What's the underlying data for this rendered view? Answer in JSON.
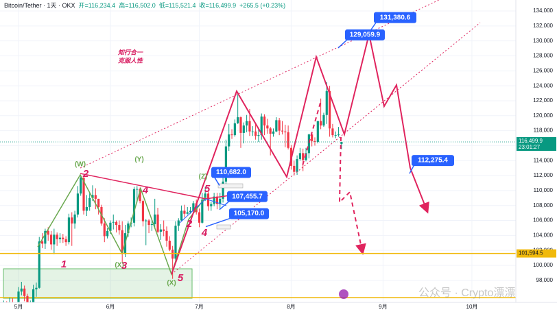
{
  "chart_data": {
    "type": "candlestick",
    "title": "Bitcoin/Tether · 1天 · OKX",
    "ohlc_header": [
      "开=116,234.4",
      "高=116,502.0",
      "低=115,521.4",
      "收=116,499.9",
      "+265.5 (+0.23%)"
    ],
    "up_color": "#089981",
    "down_color": "#f23645",
    "open": [
      94200,
      94600,
      93800,
      95000,
      94300,
      94200,
      96500,
      96900,
      95900,
      94300,
      94700,
      96800,
      97000,
      103200,
      102900,
      104600,
      104100,
      102800,
      104100,
      103500,
      103700,
      103500,
      103100,
      106400,
      105600,
      106800,
      109600,
      111700,
      107300,
      107800,
      109000,
      109400,
      108900,
      107800,
      105600,
      103900,
      104600,
      105700,
      105800,
      105400,
      104700,
      101500,
      104300,
      105600,
      105700,
      110200,
      110200,
      108600,
      105900,
      106000,
      105400,
      105500,
      106800,
      104500,
      104800,
      104600,
      103300,
      102100,
      100900,
      105300,
      106000,
      107300,
      106900,
      107100,
      107300,
      108300,
      107100,
      105700,
      108800,
      109600,
      107900,
      108200,
      109200,
      108200,
      108900,
      111200,
      115900,
      117500,
      117400,
      119000,
      119800,
      117700,
      118700,
      119300,
      117900,
      117900,
      117300,
      117400,
      119900,
      118700,
      118300,
      117600,
      117900,
      119400,
      118000,
      117900,
      117800,
      115700,
      113300,
      112500,
      114200,
      115000,
      114100,
      115000,
      117500,
      116600,
      116500,
      119300,
      118700,
      120100,
      123300,
      118300,
      117400,
      117400,
      116234.4
    ],
    "high": [
      95300,
      95200,
      95700,
      95600,
      95100,
      97100,
      97800,
      97300,
      96200,
      95300,
      97400,
      97700,
      103800,
      104300,
      104900,
      105100,
      104600,
      104900,
      104400,
      104300,
      104200,
      103900,
      106900,
      107100,
      107300,
      110600,
      112000,
      111900,
      109400,
      109700,
      110700,
      110300,
      108900,
      108100,
      106300,
      105000,
      106000,
      106800,
      106000,
      106000,
      105900,
      105400,
      105900,
      106400,
      110500,
      110600,
      110400,
      108800,
      106200,
      106200,
      106100,
      108900,
      107700,
      105500,
      106000,
      105200,
      103900,
      102600,
      105900,
      106300,
      108000,
      108100,
      107800,
      107800,
      108600,
      108800,
      107600,
      109700,
      110500,
      110000,
      108500,
      109700,
      109700,
      109700,
      112000,
      116800,
      118900,
      118200,
      119500,
      123200,
      119900,
      119100,
      120100,
      120900,
      118600,
      118900,
      118300,
      120300,
      120200,
      119600,
      118500,
      118300,
      119800,
      119700,
      119300,
      118800,
      118700,
      116100,
      114000,
      114700,
      115700,
      115600,
      115700,
      117600,
      117700,
      117100,
      119300,
      122300,
      120400,
      124500,
      124000,
      118900,
      117900,
      118500,
      116502.0
    ],
    "low": [
      93600,
      93200,
      93300,
      93700,
      93500,
      94000,
      96000,
      95200,
      93600,
      93800,
      94400,
      95800,
      96900,
      102300,
      102200,
      103300,
      102100,
      101500,
      102600,
      103000,
      103000,
      102600,
      102800,
      102600,
      104900,
      106400,
      109300,
      106800,
      106600,
      107300,
      108600,
      107500,
      106800,
      105300,
      103100,
      103600,
      104200,
      104800,
      104400,
      104100,
      100400,
      101100,
      103800,
      105100,
      105200,
      108400,
      108300,
      105200,
      102700,
      104300,
      104600,
      104900,
      104300,
      103400,
      103900,
      102500,
      101900,
      98200,
      100300,
      104600,
      105900,
      106400,
      106800,
      106900,
      107000,
      106800,
      105100,
      105600,
      108600,
      107300,
      107300,
      107900,
      107500,
      107500,
      108400,
      110800,
      115300,
      116900,
      117200,
      118900,
      115700,
      116300,
      117800,
      117300,
      117300,
      116800,
      116500,
      116800,
      117400,
      117600,
      114700,
      117200,
      117800,
      117400,
      117500,
      115800,
      115500,
      112800,
      112000,
      112100,
      114000,
      112600,
      113900,
      114300,
      115900,
      116000,
      116300,
      118200,
      118500,
      118900,
      117200,
      117100,
      117000,
      117200,
      115521.4
    ],
    "close": [
      94600,
      93800,
      95000,
      94300,
      94200,
      96500,
      96900,
      95900,
      94300,
      94700,
      96800,
      97000,
      103200,
      102900,
      104600,
      104100,
      102800,
      104100,
      103500,
      103700,
      103500,
      103100,
      106400,
      105600,
      106800,
      109600,
      111700,
      107300,
      107800,
      109000,
      109400,
      108900,
      107800,
      105600,
      103900,
      104600,
      105700,
      105800,
      105400,
      104700,
      101500,
      104300,
      105600,
      105700,
      110200,
      110200,
      108600,
      105900,
      106000,
      105400,
      105500,
      106800,
      104500,
      104800,
      104600,
      103300,
      102100,
      100900,
      105300,
      106000,
      107300,
      106900,
      107100,
      107300,
      108300,
      107100,
      105700,
      108800,
      109600,
      107900,
      108200,
      109200,
      108200,
      108900,
      111200,
      115900,
      117500,
      117400,
      119000,
      119800,
      117700,
      118700,
      119300,
      117900,
      117900,
      117300,
      117400,
      119900,
      118700,
      118300,
      117600,
      117900,
      119400,
      118000,
      117900,
      117800,
      115700,
      113300,
      112500,
      114200,
      115000,
      114100,
      115000,
      117500,
      116600,
      116500,
      119300,
      118700,
      120100,
      123300,
      118300,
      117400,
      117400,
      117500,
      116499.9
    ],
    "xticks": [
      "5月",
      "6月",
      "7月",
      "8月",
      "9月",
      "10月"
    ],
    "ylim": [
      94500,
      135470
    ],
    "yticks": [
      {
        "value": 98000,
        "label": "98,000"
      },
      {
        "value": 100000,
        "label": "100,000"
      },
      {
        "value": 102000,
        "label": "102,000"
      },
      {
        "value": 104000,
        "label": "104,000"
      },
      {
        "value": 106000,
        "label": "106,000"
      },
      {
        "value": 108000,
        "label": "108,000"
      },
      {
        "value": 110000,
        "label": "110,000"
      },
      {
        "value": 112000,
        "label": "112,000"
      },
      {
        "value": 114000,
        "label": "114,000"
      },
      {
        "value": 116000,
        "label": "116,000"
      },
      {
        "value": 118000,
        "label": "118,000"
      },
      {
        "value": 120000,
        "label": "120,000"
      },
      {
        "value": 122000,
        "label": "122,000"
      },
      {
        "value": 124000,
        "label": "124,000"
      },
      {
        "value": 126000,
        "label": "126,000"
      },
      {
        "value": 128000,
        "label": "128,000"
      },
      {
        "value": 130000,
        "label": "130,000"
      },
      {
        "value": 132000,
        "label": "132,000"
      },
      {
        "value": 134000,
        "label": "134,000"
      }
    ],
    "grid": true,
    "current_price": {
      "value": 116499.9,
      "label": "116,499.9"
    },
    "countdown": "23:01:27",
    "support_level": {
      "value": 101594.5,
      "label": "101,594.5"
    },
    "price_callouts": [
      {
        "value": 131380.6,
        "label": "131,380.6"
      },
      {
        "value": 129059.9,
        "label": "129,059.9"
      },
      {
        "value": 112275.4,
        "label": "112,275.4"
      },
      {
        "value": 110682.0,
        "label": "110,682.0"
      },
      {
        "value": 107455.7,
        "label": "107,455.7"
      },
      {
        "value": 105170.0,
        "label": "105,170.0"
      }
    ],
    "wave_labels": [
      "(W)",
      "2",
      "(Y)",
      "4",
      "1",
      "(X)",
      "3",
      "(X)",
      "5",
      "(Z)",
      "5",
      "2",
      "4"
    ],
    "notes": [
      "知行合一",
      "克服人性"
    ],
    "watermark": "公众号 · Crypto漂漂"
  }
}
